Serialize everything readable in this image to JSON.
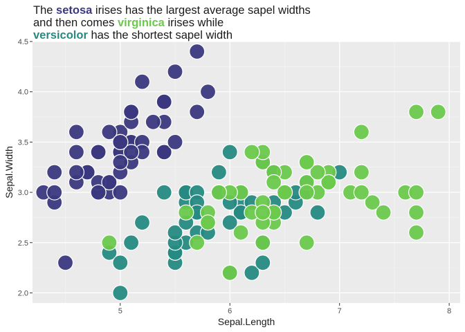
{
  "title": {
    "line1_pre": "The ",
    "line1_hl": "setosa",
    "line1_post": " irises has the largest average sapel widths",
    "line2_pre": "and then comes ",
    "line2_hl": "virginica",
    "line2_post": " irises while",
    "line3_hl": "versicolor",
    "line3_post": " has the shortest sapel width"
  },
  "colors": {
    "setosa": "#3b3880",
    "versicolor": "#268a82",
    "virginica": "#6cc94c",
    "panel": "#ebebeb",
    "grid_major": "#ffffff",
    "grid_minor": "#f5f5f5"
  },
  "chart_data": {
    "type": "scatter",
    "xlabel": "Sepal.Length",
    "ylabel": "Sepal.Width",
    "xlim": [
      4.2,
      8.1
    ],
    "ylim": [
      1.9,
      4.5
    ],
    "x_ticks": [
      5,
      6,
      7,
      8
    ],
    "y_ticks": [
      2.0,
      2.5,
      3.0,
      3.5,
      4.0,
      4.5
    ],
    "x_tick_labels": [
      "5",
      "6",
      "7",
      "8"
    ],
    "y_tick_labels": [
      "2.0",
      "2.5",
      "3.0",
      "3.5",
      "4.0",
      "4.5"
    ],
    "grid": true,
    "legend": "none",
    "series": [
      {
        "name": "setosa",
        "x": [
          5.1,
          4.9,
          4.7,
          4.6,
          5.0,
          5.4,
          4.6,
          5.0,
          4.4,
          4.9,
          5.4,
          4.8,
          4.8,
          4.3,
          5.8,
          5.7,
          5.4,
          5.1,
          5.7,
          5.1,
          5.4,
          5.1,
          4.6,
          5.1,
          4.8,
          5.0,
          5.0,
          5.2,
          5.2,
          4.7,
          4.8,
          5.4,
          5.2,
          5.5,
          4.9,
          5.0,
          5.5,
          4.9,
          4.4,
          5.1,
          5.0,
          4.5,
          4.4,
          5.0,
          5.1,
          4.8,
          5.1,
          4.6,
          5.3,
          5.0
        ],
        "y": [
          3.5,
          3.0,
          3.2,
          3.1,
          3.6,
          3.9,
          3.4,
          3.4,
          2.9,
          3.1,
          3.7,
          3.4,
          3.0,
          3.0,
          4.0,
          4.4,
          3.9,
          3.5,
          3.8,
          3.8,
          3.4,
          3.7,
          3.6,
          3.3,
          3.4,
          3.0,
          3.4,
          3.5,
          3.4,
          3.2,
          3.1,
          3.4,
          4.1,
          4.2,
          3.1,
          3.2,
          3.5,
          3.6,
          3.0,
          3.4,
          3.5,
          2.3,
          3.2,
          3.5,
          3.8,
          3.0,
          3.8,
          3.2,
          3.7,
          3.3
        ]
      },
      {
        "name": "versicolor",
        "x": [
          7.0,
          6.4,
          6.9,
          5.5,
          6.5,
          5.7,
          6.3,
          4.9,
          6.6,
          5.2,
          5.0,
          5.9,
          6.0,
          6.1,
          5.6,
          6.7,
          5.6,
          5.8,
          6.2,
          5.6,
          5.9,
          6.1,
          6.3,
          6.1,
          6.4,
          6.6,
          6.8,
          6.7,
          6.0,
          5.7,
          5.5,
          5.5,
          5.8,
          6.0,
          5.4,
          6.0,
          6.7,
          6.3,
          5.6,
          5.5,
          5.5,
          6.1,
          5.8,
          5.0,
          5.6,
          5.7,
          5.7,
          6.2,
          5.1,
          5.7
        ],
        "y": [
          3.2,
          3.2,
          3.1,
          2.3,
          2.8,
          2.8,
          3.3,
          2.4,
          2.9,
          2.7,
          2.0,
          3.0,
          2.2,
          2.9,
          2.9,
          3.1,
          3.0,
          2.7,
          2.2,
          2.5,
          3.2,
          2.8,
          2.5,
          2.8,
          2.9,
          3.0,
          2.8,
          3.0,
          2.9,
          2.6,
          2.4,
          2.4,
          2.7,
          2.7,
          3.0,
          3.4,
          3.1,
          2.3,
          3.0,
          2.5,
          2.6,
          3.0,
          2.6,
          2.3,
          2.7,
          3.0,
          2.9,
          2.9,
          2.5,
          2.8
        ]
      },
      {
        "name": "virginica",
        "x": [
          6.3,
          5.8,
          7.1,
          6.3,
          6.5,
          7.6,
          4.9,
          7.3,
          6.7,
          7.2,
          6.5,
          6.4,
          6.8,
          5.7,
          5.8,
          6.4,
          6.5,
          7.7,
          7.7,
          6.0,
          6.9,
          5.6,
          7.7,
          6.3,
          6.7,
          7.2,
          6.2,
          6.1,
          6.4,
          7.2,
          7.4,
          7.9,
          6.4,
          6.3,
          6.1,
          7.7,
          6.3,
          6.4,
          6.0,
          6.9,
          6.7,
          6.9,
          5.8,
          6.8,
          6.7,
          6.7,
          6.3,
          6.5,
          6.2,
          5.9
        ],
        "y": [
          3.3,
          2.7,
          3.0,
          2.9,
          3.0,
          3.0,
          2.5,
          2.9,
          2.5,
          3.6,
          3.2,
          2.7,
          3.0,
          2.5,
          2.8,
          3.2,
          3.0,
          3.8,
          2.6,
          2.2,
          3.2,
          2.8,
          2.8,
          2.7,
          3.3,
          3.2,
          2.8,
          3.0,
          2.8,
          3.0,
          2.8,
          3.8,
          2.8,
          2.8,
          2.6,
          3.0,
          3.4,
          3.1,
          3.0,
          3.1,
          3.1,
          3.1,
          2.7,
          3.2,
          3.3,
          3.0,
          2.5,
          3.0,
          3.4,
          3.0
        ]
      }
    ]
  }
}
